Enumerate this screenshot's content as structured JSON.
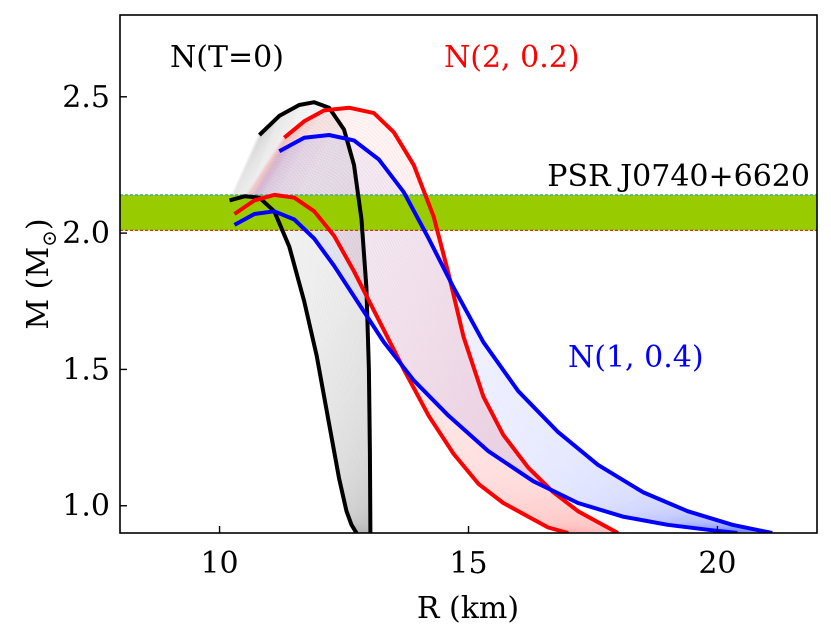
{
  "chart_data": {
    "type": "line",
    "title": "",
    "xlabel": "R (km)",
    "ylabel_main": "M (M",
    "ylabel_sub": "⊙",
    "ylabel_close": ")",
    "xlim": [
      8,
      22
    ],
    "ylim": [
      0.9,
      2.8
    ],
    "xticks": [
      10,
      15,
      20
    ],
    "xtick_labels": [
      "10",
      "15",
      "20"
    ],
    "yticks": [
      1.0,
      1.5,
      2.0,
      2.5
    ],
    "ytick_labels": [
      "1.0",
      "1.5",
      "2.0",
      "2.5"
    ],
    "band": {
      "label": "PSR J0740+6620",
      "y_range": [
        2.01,
        2.14
      ],
      "color": "#99cc00"
    },
    "annotations": [
      {
        "text": "N(T=0)",
        "color": "#000000",
        "x": 9.0,
        "y": 2.67
      },
      {
        "text": "N(2, 0.2)",
        "color": "#ff0000",
        "x": 14.5,
        "y": 2.67
      },
      {
        "text": "N(1, 0.4)",
        "color": "#0000ff",
        "x": 17.0,
        "y": 1.55
      }
    ],
    "series": [
      {
        "name": "N(T=0) upper",
        "color": "#000000",
        "x": [
          10.8,
          11.2,
          11.6,
          11.9,
          12.2,
          12.5,
          12.7,
          12.85,
          12.95,
          13.0,
          13.02,
          13.03
        ],
        "y": [
          2.36,
          2.43,
          2.47,
          2.48,
          2.46,
          2.38,
          2.25,
          2.05,
          1.8,
          1.5,
          1.2,
          0.9
        ]
      },
      {
        "name": "N(T=0) lower",
        "color": "#000000",
        "x": [
          10.2,
          10.5,
          10.8,
          11.1,
          11.4,
          11.7,
          11.95,
          12.2,
          12.4,
          12.55,
          12.65,
          12.75
        ],
        "y": [
          2.12,
          2.135,
          2.13,
          2.08,
          1.95,
          1.75,
          1.55,
          1.3,
          1.1,
          0.98,
          0.93,
          0.9
        ]
      },
      {
        "name": "N(2, 0.2) upper",
        "color": "#ff0000",
        "x": [
          11.3,
          11.7,
          12.1,
          12.6,
          13.1,
          13.5,
          13.9,
          14.3,
          14.6,
          14.9,
          15.3,
          15.7,
          16.2,
          16.7,
          17.2,
          17.6,
          18.0
        ],
        "y": [
          2.35,
          2.41,
          2.45,
          2.46,
          2.44,
          2.37,
          2.25,
          2.06,
          1.85,
          1.62,
          1.4,
          1.26,
          1.14,
          1.05,
          0.98,
          0.94,
          0.9
        ]
      },
      {
        "name": "N(2, 0.2) lower",
        "color": "#ff0000",
        "x": [
          10.3,
          10.7,
          11.1,
          11.5,
          11.9,
          12.3,
          12.7,
          13.2,
          13.7,
          14.2,
          14.7,
          15.2,
          15.7,
          16.2,
          16.6,
          17.0
        ],
        "y": [
          2.07,
          2.12,
          2.14,
          2.13,
          2.08,
          1.99,
          1.86,
          1.68,
          1.5,
          1.33,
          1.19,
          1.08,
          1.01,
          0.96,
          0.92,
          0.9
        ]
      },
      {
        "name": "N(1, 0.4) upper",
        "color": "#0000ff",
        "x": [
          11.2,
          11.7,
          12.2,
          12.7,
          13.2,
          13.7,
          14.2,
          14.7,
          15.3,
          16.0,
          16.8,
          17.6,
          18.5,
          19.4,
          20.3,
          21.1
        ],
        "y": [
          2.3,
          2.35,
          2.36,
          2.34,
          2.27,
          2.15,
          1.98,
          1.8,
          1.6,
          1.42,
          1.27,
          1.15,
          1.05,
          0.98,
          0.93,
          0.9
        ]
      },
      {
        "name": "N(1, 0.4) lower",
        "color": "#0000ff",
        "x": [
          10.3,
          10.7,
          11.1,
          11.5,
          11.9,
          12.3,
          12.8,
          13.3,
          13.9,
          14.6,
          15.4,
          16.3,
          17.2,
          18.1,
          19.0,
          19.9,
          20.4
        ],
        "y": [
          2.03,
          2.07,
          2.08,
          2.05,
          1.98,
          1.88,
          1.74,
          1.6,
          1.46,
          1.33,
          1.2,
          1.09,
          1.01,
          0.96,
          0.93,
          0.91,
          0.9
        ]
      }
    ]
  }
}
